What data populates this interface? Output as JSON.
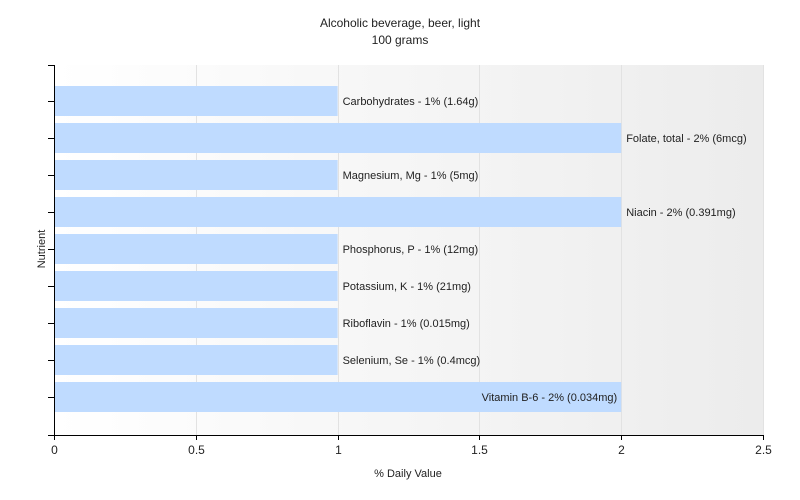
{
  "chart_data": {
    "type": "bar",
    "orientation": "horizontal",
    "title": "Alcoholic beverage, beer, light",
    "subtitle": "100 grams",
    "xlabel": "% Daily Value",
    "ylabel": "Nutrient",
    "xlim": [
      0,
      2.5
    ],
    "xticks": [
      "0",
      "0.5",
      "1",
      "1.5",
      "2",
      "2.5"
    ],
    "grid": true,
    "bar_color": "#bfdbff",
    "bars": [
      {
        "category": "Carbohydrates",
        "value": 1,
        "label": "Carbohydrates - 1% (1.64g)"
      },
      {
        "category": "Folate, total",
        "value": 2,
        "label": "Folate, total - 2% (6mcg)"
      },
      {
        "category": "Magnesium, Mg",
        "value": 1,
        "label": "Magnesium, Mg - 1% (5mg)"
      },
      {
        "category": "Niacin",
        "value": 2,
        "label": "Niacin - 2% (0.391mg)"
      },
      {
        "category": "Phosphorus, P",
        "value": 1,
        "label": "Phosphorus, P - 1% (12mg)"
      },
      {
        "category": "Potassium, K",
        "value": 1,
        "label": "Potassium, K - 1% (21mg)"
      },
      {
        "category": "Riboflavin",
        "value": 1,
        "label": "Riboflavin - 1% (0.015mg)"
      },
      {
        "category": "Selenium, Se",
        "value": 1,
        "label": "Selenium, Se - 1% (0.4mcg)"
      },
      {
        "category": "Vitamin B-6",
        "value": 2,
        "label": "Vitamin B-6 - 2% (0.034mg)"
      }
    ]
  }
}
